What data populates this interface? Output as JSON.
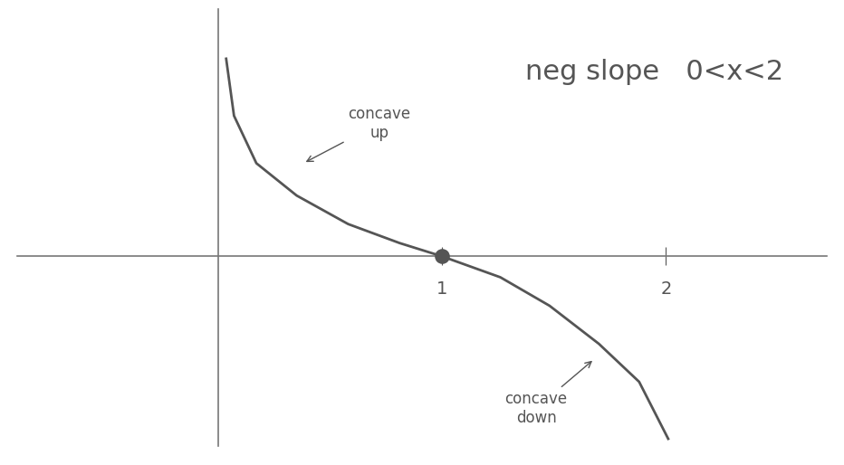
{
  "chart_data": {
    "type": "line",
    "x": [
      0.035,
      0.07,
      0.17,
      0.35,
      0.58,
      0.81,
      1.0,
      1.26,
      1.48,
      1.7,
      1.88,
      2.01
    ],
    "series": [
      {
        "type": "line",
        "color": "#555555",
        "line_style": "solid",
        "x": [
          0.035,
          0.07,
          0.17,
          0.35,
          0.58,
          0.81,
          1.0,
          1.26,
          1.48,
          1.7,
          1.88,
          2.01
        ],
        "values": [
          1.04,
          0.74,
          0.49,
          0.32,
          0.17,
          0.07,
          0.0,
          -0.11,
          -0.26,
          -0.46,
          -0.66,
          -0.96
        ]
      },
      {
        "type": "scatter",
        "color": "#555555",
        "marker": "o",
        "x": [
          1.0
        ],
        "values": [
          0.0
        ]
      }
    ],
    "annotations": [
      {
        "text": "neg slope   0<x<2"
      },
      {
        "text": "concave\nup"
      },
      {
        "text": "concave\ndown"
      }
    ],
    "xlim": [
      -0.9,
      2.72
    ],
    "xticks": [
      1,
      2
    ],
    "ylim": [
      -1.0,
      1.3
    ],
    "yticks": [],
    "tick_labels": "x",
    "grid": false
  }
}
